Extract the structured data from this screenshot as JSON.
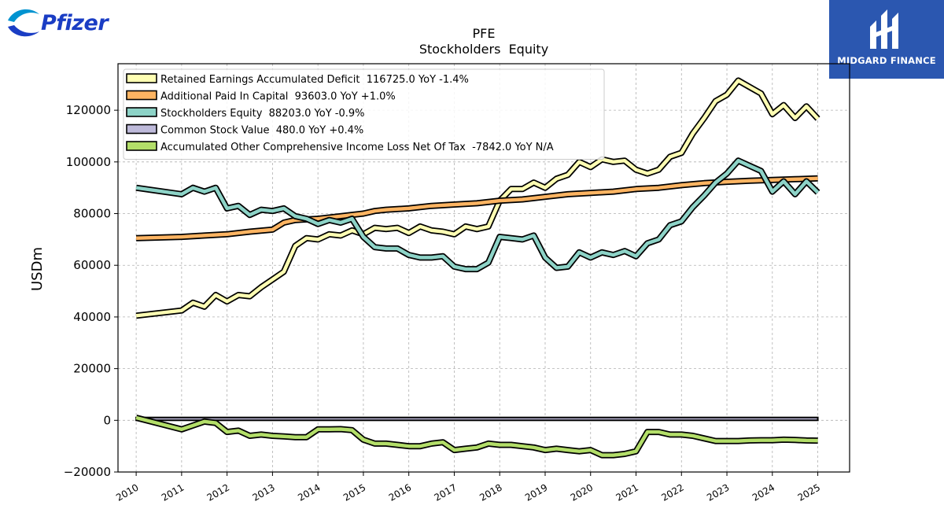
{
  "brand": {
    "left_logo_text": "Pfizer",
    "right_logo_text": "MIDGARD FINANCE"
  },
  "chart_data": {
    "type": "line",
    "title": "PFE",
    "subtitle": "Stockholders  Equity",
    "xlabel": "",
    "ylabel": "USDm",
    "xlim": [
      2009.6,
      2025.7
    ],
    "ylim": [
      -20000,
      138000
    ],
    "yticks": [
      -20000,
      0,
      20000,
      40000,
      60000,
      80000,
      100000,
      120000
    ],
    "ytick_labels": [
      "−20000",
      "0",
      "20000",
      "40000",
      "60000",
      "80000",
      "100000",
      "120000"
    ],
    "xticks": [
      2010,
      2011,
      2012,
      2013,
      2014,
      2015,
      2016,
      2017,
      2018,
      2019,
      2020,
      2021,
      2022,
      2023,
      2024,
      2025
    ],
    "xtick_labels": [
      "2010",
      "2011",
      "2012",
      "2013",
      "2014",
      "2015",
      "2016",
      "2017",
      "2018",
      "2019",
      "2020",
      "2021",
      "2022",
      "2023",
      "2024",
      "2025"
    ],
    "grid": true,
    "legend_position": "top-left",
    "series": [
      {
        "name": "Retained Earnings Accumulated Deficit  116725.0 YoY -1.4%",
        "color": "#ffffb3",
        "points": [
          [
            2010.0,
            40500
          ],
          [
            2011.0,
            42500
          ],
          [
            2011.25,
            45500
          ],
          [
            2011.5,
            44000
          ],
          [
            2011.75,
            48500
          ],
          [
            2012.0,
            46000
          ],
          [
            2012.25,
            48500
          ],
          [
            2012.5,
            48000
          ],
          [
            2012.75,
            51500
          ],
          [
            2013.0,
            54500
          ],
          [
            2013.25,
            57500
          ],
          [
            2013.5,
            67500
          ],
          [
            2013.75,
            70500
          ],
          [
            2014.0,
            70000
          ],
          [
            2014.25,
            72000
          ],
          [
            2014.5,
            71500
          ],
          [
            2014.75,
            73500
          ],
          [
            2015.0,
            72000
          ],
          [
            2015.25,
            74500
          ],
          [
            2015.5,
            74000
          ],
          [
            2015.75,
            74500
          ],
          [
            2016.0,
            72500
          ],
          [
            2016.25,
            75000
          ],
          [
            2016.5,
            73500
          ],
          [
            2016.75,
            73000
          ],
          [
            2017.0,
            72000
          ],
          [
            2017.25,
            75000
          ],
          [
            2017.5,
            74000
          ],
          [
            2017.75,
            75000
          ],
          [
            2018.0,
            85000
          ],
          [
            2018.25,
            89500
          ],
          [
            2018.5,
            89500
          ],
          [
            2018.75,
            92000
          ],
          [
            2019.0,
            90000
          ],
          [
            2019.25,
            93500
          ],
          [
            2019.5,
            95000
          ],
          [
            2019.75,
            100000
          ],
          [
            2020.0,
            98000
          ],
          [
            2020.25,
            101000
          ],
          [
            2020.5,
            100000
          ],
          [
            2020.75,
            100500
          ],
          [
            2021.0,
            97000
          ],
          [
            2021.25,
            95500
          ],
          [
            2021.5,
            97000
          ],
          [
            2021.75,
            102000
          ],
          [
            2022.0,
            103500
          ],
          [
            2022.25,
            111000
          ],
          [
            2022.5,
            117000
          ],
          [
            2022.75,
            123500
          ],
          [
            2023.0,
            126000
          ],
          [
            2023.25,
            131500
          ],
          [
            2023.5,
            129000
          ],
          [
            2023.75,
            126500
          ],
          [
            2024.0,
            118500
          ],
          [
            2024.25,
            122000
          ],
          [
            2024.5,
            117000
          ],
          [
            2024.75,
            121500
          ],
          [
            2025.0,
            116725
          ]
        ]
      },
      {
        "name": "Additional Paid In Capital  93603.0 YoY +1.0%",
        "color": "#fdb462",
        "points": [
          [
            2010.0,
            70500
          ],
          [
            2011.0,
            71000
          ],
          [
            2011.5,
            71500
          ],
          [
            2012.0,
            72000
          ],
          [
            2012.5,
            73000
          ],
          [
            2013.0,
            73800
          ],
          [
            2013.25,
            76500
          ],
          [
            2013.5,
            77500
          ],
          [
            2014.0,
            78000
          ],
          [
            2014.5,
            79000
          ],
          [
            2015.0,
            80000
          ],
          [
            2015.25,
            81000
          ],
          [
            2015.5,
            81500
          ],
          [
            2016.0,
            82000
          ],
          [
            2016.5,
            83000
          ],
          [
            2017.0,
            83500
          ],
          [
            2017.5,
            84000
          ],
          [
            2018.0,
            85000
          ],
          [
            2018.5,
            85500
          ],
          [
            2019.0,
            86500
          ],
          [
            2019.5,
            87500
          ],
          [
            2020.0,
            88000
          ],
          [
            2020.5,
            88500
          ],
          [
            2021.0,
            89500
          ],
          [
            2021.5,
            90000
          ],
          [
            2022.0,
            91000
          ],
          [
            2022.5,
            91800
          ],
          [
            2023.0,
            92300
          ],
          [
            2023.5,
            92700
          ],
          [
            2024.0,
            93000
          ],
          [
            2024.5,
            93300
          ],
          [
            2025.0,
            93603
          ]
        ]
      },
      {
        "name": "Stockholders Equity  88203.0 YoY -0.9%",
        "color": "#8dd3c7",
        "points": [
          [
            2010.0,
            90000
          ],
          [
            2011.0,
            87500
          ],
          [
            2011.25,
            90000
          ],
          [
            2011.5,
            88500
          ],
          [
            2011.75,
            90000
          ],
          [
            2012.0,
            82000
          ],
          [
            2012.25,
            83000
          ],
          [
            2012.5,
            79500
          ],
          [
            2012.75,
            81500
          ],
          [
            2013.0,
            81000
          ],
          [
            2013.25,
            82000
          ],
          [
            2013.5,
            79000
          ],
          [
            2013.75,
            78000
          ],
          [
            2014.0,
            76000
          ],
          [
            2014.25,
            77500
          ],
          [
            2014.5,
            76500
          ],
          [
            2014.75,
            78000
          ],
          [
            2015.0,
            71000
          ],
          [
            2015.25,
            67000
          ],
          [
            2015.5,
            66500
          ],
          [
            2015.75,
            66500
          ],
          [
            2016.0,
            64000
          ],
          [
            2016.25,
            63000
          ],
          [
            2016.5,
            63000
          ],
          [
            2016.75,
            63500
          ],
          [
            2017.0,
            59500
          ],
          [
            2017.25,
            58500
          ],
          [
            2017.5,
            58500
          ],
          [
            2017.75,
            61000
          ],
          [
            2018.0,
            71000
          ],
          [
            2018.25,
            70500
          ],
          [
            2018.5,
            70000
          ],
          [
            2018.75,
            71500
          ],
          [
            2019.0,
            63000
          ],
          [
            2019.25,
            59000
          ],
          [
            2019.5,
            59500
          ],
          [
            2019.75,
            65000
          ],
          [
            2020.0,
            63000
          ],
          [
            2020.25,
            65000
          ],
          [
            2020.5,
            64000
          ],
          [
            2020.75,
            65500
          ],
          [
            2021.0,
            63500
          ],
          [
            2021.25,
            68500
          ],
          [
            2021.5,
            70000
          ],
          [
            2021.75,
            75500
          ],
          [
            2022.0,
            77000
          ],
          [
            2022.25,
            82500
          ],
          [
            2022.5,
            87000
          ],
          [
            2022.75,
            92000
          ],
          [
            2023.0,
            95500
          ],
          [
            2023.25,
            100500
          ],
          [
            2023.5,
            98500
          ],
          [
            2023.75,
            96500
          ],
          [
            2024.0,
            88500
          ],
          [
            2024.25,
            92500
          ],
          [
            2024.5,
            87500
          ],
          [
            2024.75,
            92500
          ],
          [
            2025.0,
            88203
          ]
        ]
      },
      {
        "name": "Common Stock Value  480.0 YoY +0.4%",
        "color": "#bebada",
        "style": "band",
        "band": [
          0,
          1100
        ],
        "x_range": [
          2010.0,
          2025.0
        ]
      },
      {
        "name": "Accumulated Other Comprehensive Income Loss Net Of Tax  -7842.0 YoY N/A",
        "color": "#b3de69",
        "points": [
          [
            2010.0,
            1000
          ],
          [
            2011.0,
            -3500
          ],
          [
            2011.25,
            -2000
          ],
          [
            2011.5,
            -500
          ],
          [
            2011.75,
            -1000
          ],
          [
            2012.0,
            -4500
          ],
          [
            2012.25,
            -4000
          ],
          [
            2012.5,
            -6000
          ],
          [
            2012.75,
            -5500
          ],
          [
            2013.0,
            -6000
          ],
          [
            2013.25,
            -6200
          ],
          [
            2013.5,
            -6500
          ],
          [
            2013.75,
            -6500
          ],
          [
            2014.0,
            -3500
          ],
          [
            2014.25,
            -3500
          ],
          [
            2014.5,
            -3400
          ],
          [
            2014.75,
            -3800
          ],
          [
            2015.0,
            -7500
          ],
          [
            2015.25,
            -9000
          ],
          [
            2015.5,
            -9000
          ],
          [
            2015.75,
            -9500
          ],
          [
            2016.0,
            -10000
          ],
          [
            2016.25,
            -10000
          ],
          [
            2016.5,
            -9000
          ],
          [
            2016.75,
            -8500
          ],
          [
            2017.0,
            -11500
          ],
          [
            2017.25,
            -11000
          ],
          [
            2017.5,
            -10500
          ],
          [
            2017.75,
            -9000
          ],
          [
            2018.0,
            -9500
          ],
          [
            2018.25,
            -9500
          ],
          [
            2018.5,
            -10000
          ],
          [
            2018.75,
            -10500
          ],
          [
            2019.0,
            -11500
          ],
          [
            2019.25,
            -11000
          ],
          [
            2019.5,
            -11500
          ],
          [
            2019.75,
            -12000
          ],
          [
            2020.0,
            -11500
          ],
          [
            2020.25,
            -13500
          ],
          [
            2020.5,
            -13500
          ],
          [
            2020.75,
            -13000
          ],
          [
            2021.0,
            -12000
          ],
          [
            2021.25,
            -4500
          ],
          [
            2021.5,
            -4500
          ],
          [
            2021.75,
            -5500
          ],
          [
            2022.0,
            -5500
          ],
          [
            2022.25,
            -6000
          ],
          [
            2022.5,
            -7000
          ],
          [
            2022.75,
            -8000
          ],
          [
            2023.0,
            -8000
          ],
          [
            2023.25,
            -8000
          ],
          [
            2023.5,
            -7800
          ],
          [
            2023.75,
            -7700
          ],
          [
            2024.0,
            -7700
          ],
          [
            2024.25,
            -7500
          ],
          [
            2024.5,
            -7600
          ],
          [
            2024.75,
            -7800
          ],
          [
            2025.0,
            -7842
          ]
        ]
      }
    ]
  }
}
